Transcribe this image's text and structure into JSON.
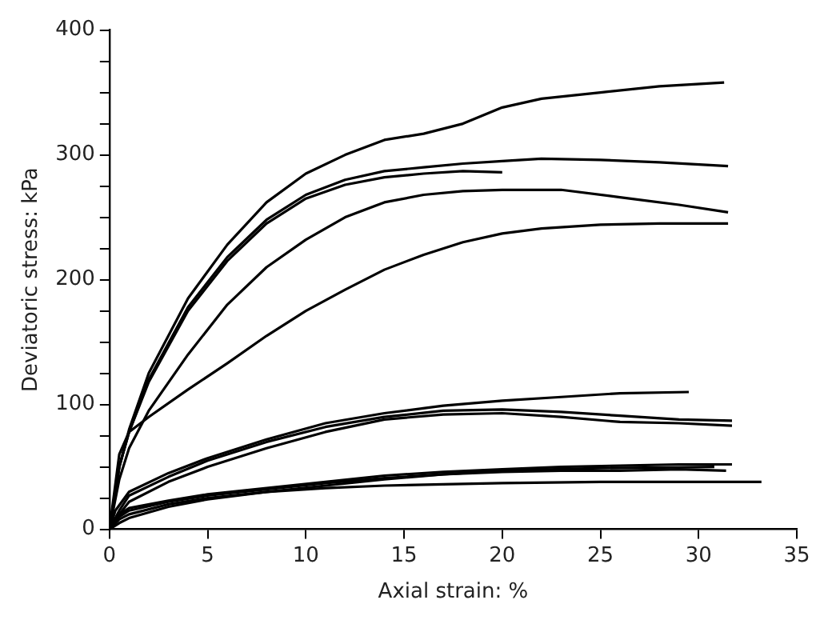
{
  "chart_data": {
    "type": "line",
    "xlabel": "Axial strain: %",
    "ylabel": "Deviatoric stress: kPa",
    "xlim": [
      0,
      35
    ],
    "xticks": [
      0,
      5,
      10,
      15,
      20,
      25,
      30,
      35
    ],
    "ylim": [
      0,
      400
    ],
    "yticks": [
      0,
      {
        "value": 25,
        "label": null
      },
      {
        "value": 50,
        "label": null
      },
      {
        "value": 75,
        "label": null
      },
      100,
      {
        "value": 125,
        "label": null
      },
      {
        "value": 150,
        "label": null
      },
      {
        "value": 175,
        "label": null
      },
      200,
      {
        "value": 225,
        "label": null
      },
      {
        "value": 250,
        "label": null
      },
      {
        "value": 275,
        "label": null
      },
      300,
      {
        "value": 325,
        "label": null
      },
      {
        "value": 350,
        "label": null
      },
      {
        "value": 375,
        "label": null
      },
      400
    ],
    "grid": false,
    "legend": false,
    "marker": "none",
    "line_style": "solid",
    "series": [
      {
        "color": "#000000",
        "x": [
          0,
          0.5,
          1,
          2,
          4,
          6,
          8,
          10,
          12,
          14,
          16,
          18,
          20,
          22,
          25,
          28,
          31.3
        ],
        "values": [
          0,
          50,
          80,
          125,
          185,
          228,
          262,
          285,
          300,
          312,
          317,
          325,
          338,
          345,
          350,
          355,
          358
        ]
      },
      {
        "color": "#000000",
        "x": [
          0,
          0.5,
          1,
          2,
          4,
          6,
          8,
          10,
          12,
          14,
          16,
          18,
          20,
          22,
          25,
          28,
          31.5
        ],
        "values": [
          0,
          50,
          78,
          120,
          178,
          218,
          248,
          268,
          280,
          287,
          290,
          293,
          295,
          297,
          296,
          294,
          291
        ]
      },
      {
        "color": "#000000",
        "x": [
          0,
          0.5,
          1,
          2,
          4,
          6,
          8,
          10,
          12,
          14,
          16,
          18,
          20
        ],
        "values": [
          0,
          50,
          78,
          118,
          175,
          215,
          245,
          265,
          276,
          282,
          285,
          287,
          286
        ]
      },
      {
        "color": "#000000",
        "x": [
          0,
          0.5,
          1,
          2,
          4,
          6,
          8,
          10,
          12,
          14,
          16,
          18,
          20,
          23,
          26,
          29,
          31.5
        ],
        "values": [
          0,
          40,
          65,
          95,
          140,
          180,
          210,
          232,
          250,
          262,
          268,
          271,
          272,
          272,
          266,
          260,
          254
        ]
      },
      {
        "color": "#000000",
        "x": [
          0,
          0.5,
          1,
          2,
          4,
          6,
          8,
          10,
          12,
          14,
          16,
          18,
          20,
          22,
          25,
          28,
          31.5
        ],
        "values": [
          0,
          60,
          78,
          90,
          112,
          133,
          155,
          175,
          192,
          208,
          220,
          230,
          237,
          241,
          244,
          245,
          245
        ]
      },
      {
        "color": "#000000",
        "x": [
          0,
          0.3,
          1,
          3,
          5,
          8,
          11,
          14,
          17,
          20,
          23,
          26,
          29.5
        ],
        "values": [
          0,
          15,
          30,
          45,
          57,
          72,
          85,
          93,
          99,
          103,
          106,
          109,
          110
        ]
      },
      {
        "color": "#000000",
        "x": [
          0,
          0.5,
          1,
          3,
          5,
          8,
          11,
          14,
          17,
          20,
          23,
          26,
          29,
          31.7
        ],
        "values": [
          0,
          15,
          27,
          42,
          55,
          70,
          82,
          90,
          95,
          96,
          94,
          91,
          88,
          87
        ]
      },
      {
        "color": "#000000",
        "x": [
          0,
          0.5,
          1,
          3,
          5,
          8,
          11,
          14,
          17,
          20,
          23,
          26,
          29,
          31.7
        ],
        "values": [
          0,
          12,
          22,
          38,
          50,
          65,
          78,
          88,
          92,
          93,
          90,
          86,
          85,
          83
        ]
      },
      {
        "color": "#000000",
        "x": [
          0,
          0.5,
          1,
          3,
          5,
          8,
          11,
          14,
          17,
          20,
          23,
          26,
          29,
          31.7
        ],
        "values": [
          0,
          12,
          17,
          23,
          28,
          33,
          38,
          43,
          46,
          48,
          50,
          51,
          52,
          52
        ]
      },
      {
        "color": "#000000",
        "x": [
          0,
          0.5,
          1,
          3,
          5,
          8,
          11,
          14,
          17,
          20,
          23,
          26,
          29,
          31.4
        ],
        "values": [
          0,
          10,
          15,
          22,
          27,
          32,
          37,
          41,
          44,
          46,
          47,
          47,
          48,
          47
        ]
      },
      {
        "color": "#000000",
        "x": [
          0,
          0.5,
          1,
          3,
          5,
          8,
          11,
          14,
          17,
          20,
          25,
          29,
          33.2
        ],
        "values": [
          0,
          8,
          12,
          20,
          25,
          30,
          33,
          35,
          36,
          37,
          38,
          38,
          38
        ]
      },
      {
        "color": "#000000",
        "x": [
          0,
          0.5,
          1,
          3,
          5,
          8,
          11,
          14,
          17,
          20,
          25,
          30.8
        ],
        "values": [
          0,
          5,
          9,
          18,
          24,
          30,
          35,
          40,
          44,
          47,
          49,
          50
        ]
      }
    ]
  }
}
